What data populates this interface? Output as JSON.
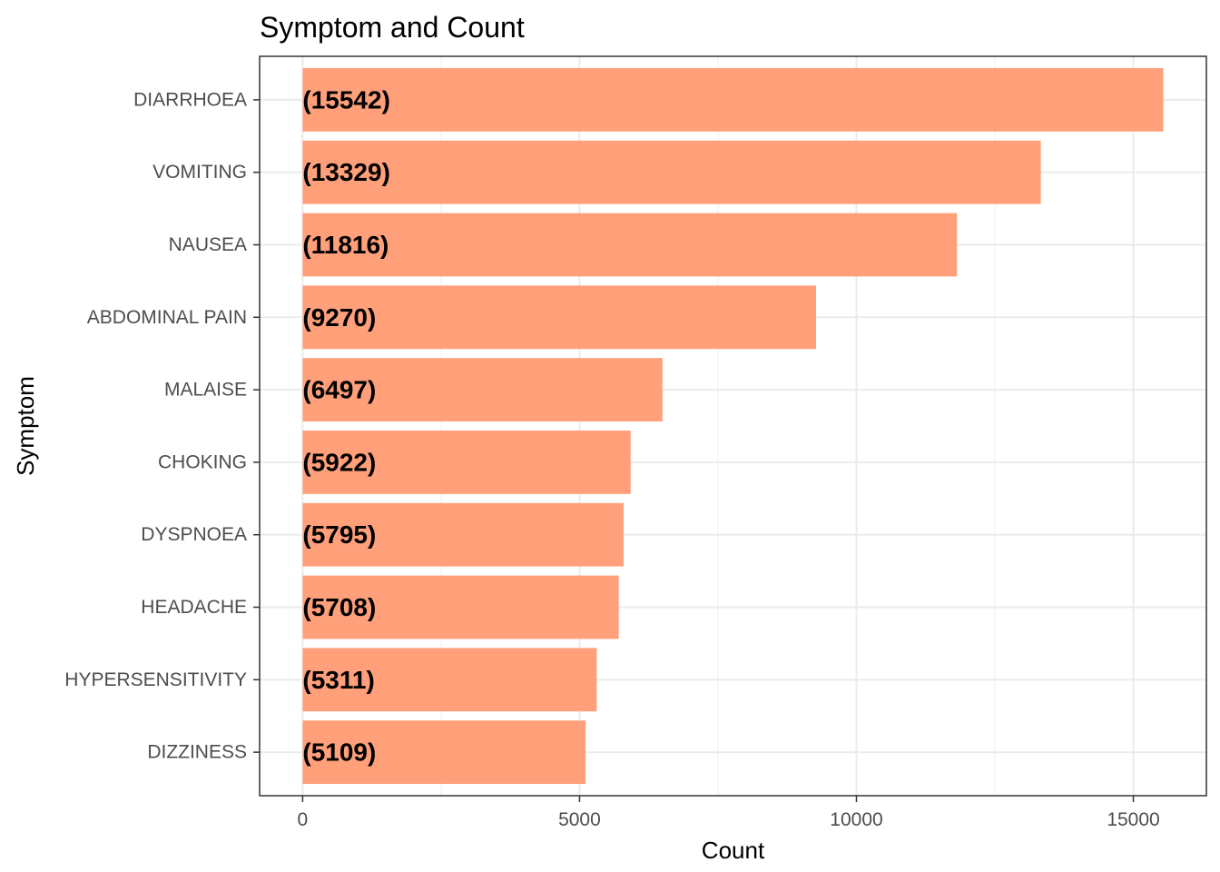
{
  "chart_data": {
    "type": "bar",
    "orientation": "horizontal",
    "title": "Symptom and Count",
    "xlabel": "Count",
    "ylabel": "Symptom",
    "categories": [
      "DIARRHOEA",
      "VOMITING",
      "NAUSEA",
      "ABDOMINAL PAIN",
      "MALAISE",
      "CHOKING",
      "DYSPNOEA",
      "HEADACHE",
      "HYPERSENSITIVITY",
      "DIZZINESS"
    ],
    "values": [
      15542,
      13329,
      11816,
      9270,
      6497,
      5922,
      5795,
      5708,
      5311,
      5109
    ],
    "data_labels": [
      "(15542)",
      "(13329)",
      "(11816)",
      "(9270)",
      "(6497)",
      "(5922)",
      "(5795)",
      "(5708)",
      "(5311)",
      "(5109)"
    ],
    "xlim": [
      -777,
      16319
    ],
    "x_ticks": [
      0,
      5000,
      10000,
      15000
    ],
    "x_tick_labels": [
      "0",
      "5000",
      "10000",
      "15000"
    ],
    "bar_color": "#FFA07A",
    "grid": true,
    "legend": "none"
  }
}
